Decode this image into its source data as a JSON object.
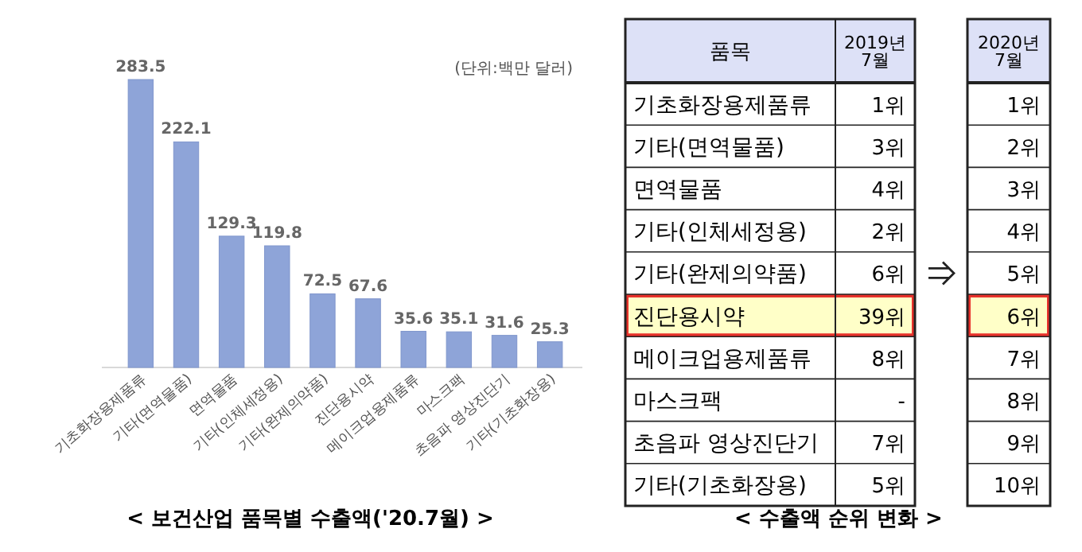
{
  "chart_data": [
    {
      "type": "bar",
      "title": "< 보건산업 품목별 수출액('20.7월) >",
      "annotations": [
        "(단위:백만 달러)"
      ],
      "categories": [
        "기초화장용제품류",
        "기타(면역물품)",
        "면역물품",
        "기타(인체세정용)",
        "기타(완제의약품)",
        "진단용시약",
        "메이크업용제품류",
        "마스크팩",
        "초음파 영상진단기",
        "기타(기초화장용)"
      ],
      "values": [
        283.5,
        222.1,
        129.3,
        119.8,
        72.5,
        67.6,
        35.6,
        35.1,
        31.6,
        25.3
      ],
      "color": "#8ea4d8",
      "data_labels": true
    },
    {
      "type": "heatmap",
      "title": "< 수출액 순위 변화 >",
      "annotations": [
        "품목"
      ],
      "categories": [
        "2019년 7월",
        "2020년 7월"
      ],
      "y_categories": [
        "기초화장용제품류",
        "기타(면역물품)",
        "면역물품",
        "기타(인체세정용)",
        "기타(완제의약품)",
        "진단용시약",
        "메이크업용제품류",
        "마스크팩",
        "초음파 영상진단기",
        "기타(기초화장용)"
      ],
      "cells": [
        [
          "1위",
          "1위"
        ],
        [
          "3위",
          "2위"
        ],
        [
          "4위",
          "3위"
        ],
        [
          "2위",
          "4위"
        ],
        [
          "6위",
          "5위"
        ],
        [
          "39위",
          "6위"
        ],
        [
          "8위",
          "7위"
        ],
        [
          "-",
          "8위"
        ],
        [
          "7위",
          "9위"
        ],
        [
          "5위",
          "10위"
        ]
      ],
      "bands": [
        {
          "axis": "y",
          "from": "진단용시약",
          "to": "진단용시약",
          "color": "#ffffc8"
        }
      ]
    }
  ]
}
